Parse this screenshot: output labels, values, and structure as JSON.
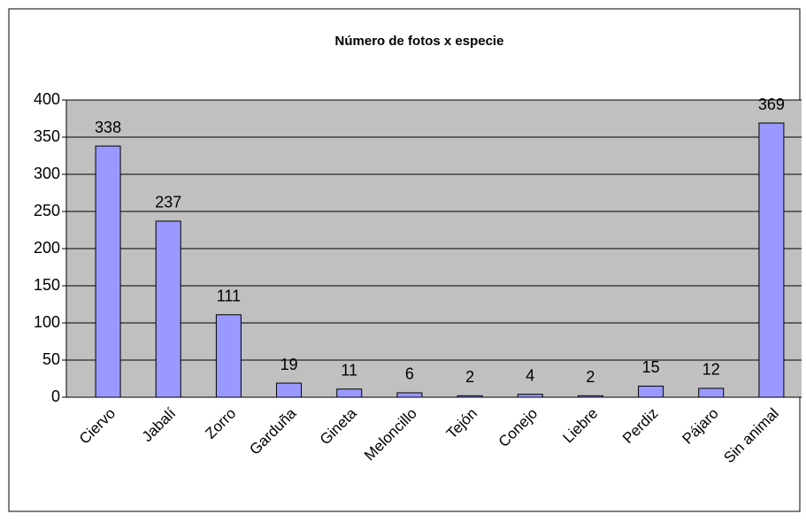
{
  "chart_data": {
    "type": "bar",
    "title": "Número de fotos x especie",
    "categories": [
      "Ciervo",
      "Jabalí",
      "Zorro",
      "Garduña",
      "Gineta",
      "Meloncillo",
      "Tejón",
      "Conejo",
      "Liebre",
      "Perdiz",
      "Pájaro",
      "Sin animal"
    ],
    "values": [
      338,
      237,
      111,
      19,
      11,
      6,
      2,
      4,
      2,
      15,
      12,
      369
    ],
    "color": "#9999ff",
    "ylim": [
      0,
      400
    ],
    "yticks": [
      0,
      50,
      100,
      150,
      200,
      250,
      300,
      350,
      400
    ],
    "grid": true
  }
}
